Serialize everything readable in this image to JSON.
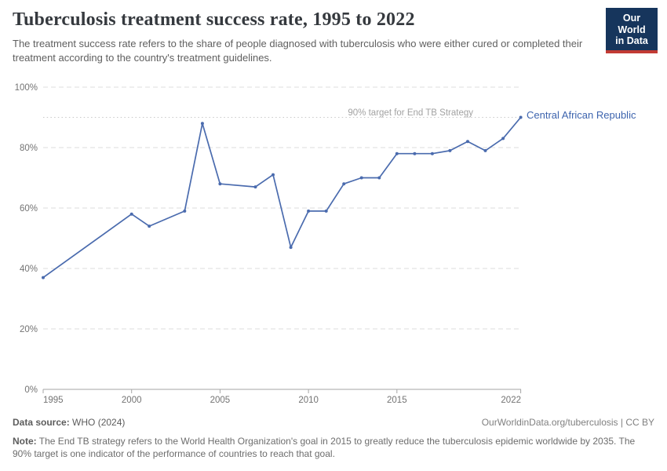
{
  "header": {
    "title": "Tuberculosis treatment success rate, 1995 to 2022",
    "subtitle": "The treatment success rate refers to the share of people diagnosed with tuberculosis who were either cured or completed their treatment according to the country's treatment guidelines.",
    "logo_line1": "Our World",
    "logo_line2": "in Data"
  },
  "chart_data": {
    "type": "line",
    "title": "Tuberculosis treatment success rate, 1995 to 2022",
    "entity": "Central African Republic",
    "unit": "%",
    "x": [
      1995,
      2000,
      2001,
      2003,
      2004,
      2005,
      2007,
      2008,
      2009,
      2010,
      2011,
      2012,
      2013,
      2014,
      2015,
      2016,
      2017,
      2018,
      2019,
      2020,
      2021,
      2022
    ],
    "values": [
      37,
      58,
      54,
      59,
      88,
      68,
      67,
      71,
      47,
      59,
      59,
      68,
      70,
      70,
      78,
      78,
      78,
      79,
      82,
      79,
      83,
      90
    ],
    "xlim": [
      1995,
      2022
    ],
    "ylim": [
      0,
      100
    ],
    "yticks": [
      0,
      20,
      40,
      60,
      80,
      100
    ],
    "xticks": [
      1995,
      2000,
      2005,
      2010,
      2015,
      2022
    ],
    "grid": true,
    "legend_position": "end-of-line-label",
    "target_line": {
      "value": 90,
      "label": "90% target for End TB Strategy"
    },
    "colors": {
      "series": "#4a6bae",
      "entity_label": "#3d64ae",
      "target_line": "#c9c9c9",
      "target_label": "#a2a2a2",
      "axis": "#a6a6a6",
      "gridline": "#dedede"
    }
  },
  "footer": {
    "source_label": "Data source:",
    "source_value": "WHO (2024)",
    "link": "OurWorldinData.org/tuberculosis | CC BY",
    "note_label": "Note:",
    "note_text": "The End TB strategy refers to the World Health Organization's goal in 2015 to greatly reduce the tuberculosis epidemic worldwide by 2035. The 90% target is one indicator of the performance of countries to reach that goal."
  }
}
